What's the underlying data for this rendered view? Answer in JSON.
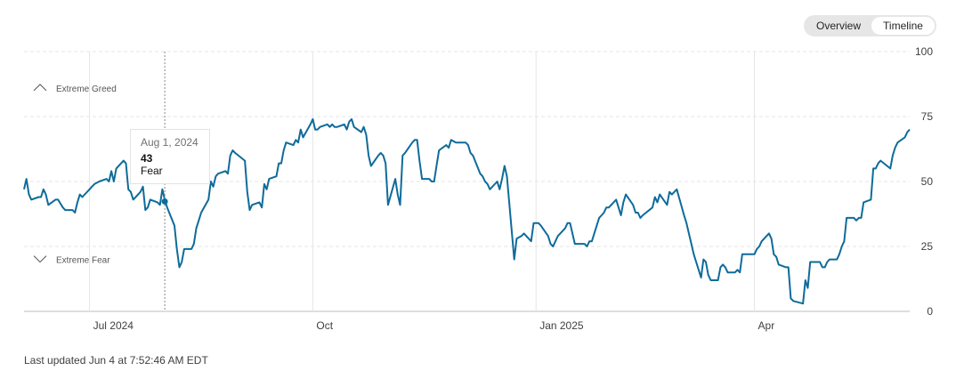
{
  "toggle": {
    "overview_label": "Overview",
    "timeline_label": "Timeline",
    "selected": "Timeline"
  },
  "footer": {
    "last_updated": "Last updated Jun 4 at 7:52:46 AM EDT"
  },
  "tooltip": {
    "date": "Aug 1, 2024",
    "value": "43",
    "label": "Fear"
  },
  "colors": {
    "line": "#0e6b9a",
    "grid": "#e6e6e6",
    "axis": "#bdbdbd",
    "text": "#404040"
  },
  "chart_data": {
    "type": "line",
    "title": "",
    "xlabel": "",
    "ylabel": "",
    "ylim": [
      0,
      100
    ],
    "yticks": [
      0,
      25,
      50,
      75,
      100
    ],
    "xticks": [
      {
        "label": "Jul 2024",
        "date": "2024-07-01"
      },
      {
        "label": "Oct",
        "date": "2024-10-01"
      },
      {
        "label": "Jan 2025",
        "date": "2025-01-01"
      },
      {
        "label": "Apr",
        "date": "2025-04-01"
      }
    ],
    "x_range": [
      "2024-06-04",
      "2025-06-04"
    ],
    "grid": true,
    "zones": [
      {
        "label": "Extreme Greed",
        "icon": "chevron-up-icon"
      },
      {
        "label": "Extreme Fear",
        "icon": "chevron-down-icon"
      }
    ],
    "highlight": {
      "date": "2024-08-01",
      "value": 43
    },
    "series": [
      {
        "points": [
          [
            "2024-06-04",
            47
          ],
          [
            "2024-06-05",
            51
          ],
          [
            "2024-06-06",
            45
          ],
          [
            "2024-06-07",
            43
          ],
          [
            "2024-06-10",
            44
          ],
          [
            "2024-06-11",
            44
          ],
          [
            "2024-06-12",
            47
          ],
          [
            "2024-06-13",
            45
          ],
          [
            "2024-06-14",
            41
          ],
          [
            "2024-06-17",
            43
          ],
          [
            "2024-06-18",
            43
          ],
          [
            "2024-06-20",
            40
          ],
          [
            "2024-06-21",
            39
          ],
          [
            "2024-06-24",
            39
          ],
          [
            "2024-06-25",
            38
          ],
          [
            "2024-06-26",
            42
          ],
          [
            "2024-06-27",
            45
          ],
          [
            "2024-06-28",
            44
          ],
          [
            "2024-07-01",
            47
          ],
          [
            "2024-07-02",
            48
          ],
          [
            "2024-07-03",
            49
          ],
          [
            "2024-07-05",
            50
          ],
          [
            "2024-07-08",
            51
          ],
          [
            "2024-07-09",
            50
          ],
          [
            "2024-07-10",
            54
          ],
          [
            "2024-07-11",
            50
          ],
          [
            "2024-07-12",
            55
          ],
          [
            "2024-07-15",
            58
          ],
          [
            "2024-07-16",
            57
          ],
          [
            "2024-07-17",
            47
          ],
          [
            "2024-07-18",
            46
          ],
          [
            "2024-07-19",
            43
          ],
          [
            "2024-07-22",
            46
          ],
          [
            "2024-07-23",
            48
          ],
          [
            "2024-07-24",
            39
          ],
          [
            "2024-07-25",
            40
          ],
          [
            "2024-07-26",
            43
          ],
          [
            "2024-07-29",
            42
          ],
          [
            "2024-07-30",
            41
          ],
          [
            "2024-07-31",
            47
          ],
          [
            "2024-08-01",
            43
          ],
          [
            "2024-08-02",
            40
          ],
          [
            "2024-08-05",
            33
          ],
          [
            "2024-08-06",
            24
          ],
          [
            "2024-08-07",
            17
          ],
          [
            "2024-08-08",
            19
          ],
          [
            "2024-08-09",
            24
          ],
          [
            "2024-08-12",
            24
          ],
          [
            "2024-08-13",
            26
          ],
          [
            "2024-08-14",
            32
          ],
          [
            "2024-08-15",
            35
          ],
          [
            "2024-08-16",
            38
          ],
          [
            "2024-08-19",
            43
          ],
          [
            "2024-08-20",
            50
          ],
          [
            "2024-08-21",
            48
          ],
          [
            "2024-08-22",
            52
          ],
          [
            "2024-08-23",
            53
          ],
          [
            "2024-08-26",
            54
          ],
          [
            "2024-08-27",
            53
          ],
          [
            "2024-08-28",
            60
          ],
          [
            "2024-08-29",
            62
          ],
          [
            "2024-08-30",
            61
          ],
          [
            "2024-09-03",
            58
          ],
          [
            "2024-09-04",
            46
          ],
          [
            "2024-09-05",
            39
          ],
          [
            "2024-09-06",
            41
          ],
          [
            "2024-09-09",
            42
          ],
          [
            "2024-09-10",
            40
          ],
          [
            "2024-09-11",
            49
          ],
          [
            "2024-09-12",
            47
          ],
          [
            "2024-09-13",
            51
          ],
          [
            "2024-09-16",
            52
          ],
          [
            "2024-09-17",
            57
          ],
          [
            "2024-09-18",
            57
          ],
          [
            "2024-09-19",
            62
          ],
          [
            "2024-09-20",
            65
          ],
          [
            "2024-09-23",
            64
          ],
          [
            "2024-09-24",
            66
          ],
          [
            "2024-09-25",
            65
          ],
          [
            "2024-09-26",
            70
          ],
          [
            "2024-09-27",
            67
          ],
          [
            "2024-09-30",
            72
          ],
          [
            "2024-10-01",
            74
          ],
          [
            "2024-10-02",
            70
          ],
          [
            "2024-10-03",
            70
          ],
          [
            "2024-10-04",
            71
          ],
          [
            "2024-10-07",
            72
          ],
          [
            "2024-10-08",
            71
          ],
          [
            "2024-10-09",
            72
          ],
          [
            "2024-10-10",
            71
          ],
          [
            "2024-10-11",
            71
          ],
          [
            "2024-10-14",
            72
          ],
          [
            "2024-10-15",
            70
          ],
          [
            "2024-10-16",
            73
          ],
          [
            "2024-10-17",
            74
          ],
          [
            "2024-10-18",
            71
          ],
          [
            "2024-10-21",
            69
          ],
          [
            "2024-10-22",
            71
          ],
          [
            "2024-10-23",
            68
          ],
          [
            "2024-10-24",
            60
          ],
          [
            "2024-10-25",
            56
          ],
          [
            "2024-10-28",
            60
          ],
          [
            "2024-10-29",
            61
          ],
          [
            "2024-10-30",
            60
          ],
          [
            "2024-10-31",
            57
          ],
          [
            "2024-11-01",
            41
          ],
          [
            "2024-11-04",
            51
          ],
          [
            "2024-11-05",
            45
          ],
          [
            "2024-11-06",
            41
          ],
          [
            "2024-11-07",
            60
          ],
          [
            "2024-11-08",
            61
          ],
          [
            "2024-11-11",
            65
          ],
          [
            "2024-11-12",
            66
          ],
          [
            "2024-11-13",
            66
          ],
          [
            "2024-11-14",
            58
          ],
          [
            "2024-11-15",
            51
          ],
          [
            "2024-11-18",
            51
          ],
          [
            "2024-11-19",
            50
          ],
          [
            "2024-11-20",
            50
          ],
          [
            "2024-11-21",
            56
          ],
          [
            "2024-11-22",
            62
          ],
          [
            "2024-11-25",
            64
          ],
          [
            "2024-11-26",
            63
          ],
          [
            "2024-11-27",
            66
          ],
          [
            "2024-11-29",
            65
          ],
          [
            "2024-12-02",
            65
          ],
          [
            "2024-12-03",
            65
          ],
          [
            "2024-12-04",
            64
          ],
          [
            "2024-12-05",
            61
          ],
          [
            "2024-12-06",
            60
          ],
          [
            "2024-12-09",
            53
          ],
          [
            "2024-12-10",
            52
          ],
          [
            "2024-12-11",
            50
          ],
          [
            "2024-12-12",
            49
          ],
          [
            "2024-12-13",
            47
          ],
          [
            "2024-12-16",
            50
          ],
          [
            "2024-12-17",
            47
          ],
          [
            "2024-12-18",
            51
          ],
          [
            "2024-12-19",
            56
          ],
          [
            "2024-12-20",
            52
          ],
          [
            "2024-12-23",
            20
          ],
          [
            "2024-12-24",
            28
          ],
          [
            "2024-12-26",
            29
          ],
          [
            "2024-12-27",
            30
          ],
          [
            "2024-12-30",
            27
          ],
          [
            "2024-12-31",
            34
          ],
          [
            "2025-01-02",
            34
          ],
          [
            "2025-01-03",
            33
          ],
          [
            "2025-01-06",
            29
          ],
          [
            "2025-01-07",
            26
          ],
          [
            "2025-01-08",
            25
          ],
          [
            "2025-01-10",
            29
          ],
          [
            "2025-01-13",
            32
          ],
          [
            "2025-01-14",
            34
          ],
          [
            "2025-01-15",
            34
          ],
          [
            "2025-01-16",
            30
          ],
          [
            "2025-01-17",
            26
          ],
          [
            "2025-01-21",
            26
          ],
          [
            "2025-01-22",
            25
          ],
          [
            "2025-01-23",
            27
          ],
          [
            "2025-01-24",
            27
          ],
          [
            "2025-01-27",
            36
          ],
          [
            "2025-01-28",
            37
          ],
          [
            "2025-01-29",
            38
          ],
          [
            "2025-01-30",
            40
          ],
          [
            "2025-01-31",
            40
          ],
          [
            "2025-02-03",
            43
          ],
          [
            "2025-02-04",
            40
          ],
          [
            "2025-02-05",
            37
          ],
          [
            "2025-02-06",
            42
          ],
          [
            "2025-02-07",
            45
          ],
          [
            "2025-02-10",
            41
          ],
          [
            "2025-02-11",
            38
          ],
          [
            "2025-02-12",
            38
          ],
          [
            "2025-02-13",
            36
          ],
          [
            "2025-02-14",
            37
          ],
          [
            "2025-02-18",
            40
          ],
          [
            "2025-02-19",
            44
          ],
          [
            "2025-02-20",
            42
          ],
          [
            "2025-02-21",
            45
          ],
          [
            "2025-02-24",
            41
          ],
          [
            "2025-02-25",
            46
          ],
          [
            "2025-02-26",
            45
          ],
          [
            "2025-02-27",
            46
          ],
          [
            "2025-02-28",
            47
          ],
          [
            "2025-03-03",
            37
          ],
          [
            "2025-03-04",
            34
          ],
          [
            "2025-03-05",
            30
          ],
          [
            "2025-03-06",
            26
          ],
          [
            "2025-03-07",
            22
          ],
          [
            "2025-03-10",
            13
          ],
          [
            "2025-03-11",
            20
          ],
          [
            "2025-03-12",
            19
          ],
          [
            "2025-03-13",
            14
          ],
          [
            "2025-03-14",
            12
          ],
          [
            "2025-03-17",
            12
          ],
          [
            "2025-03-18",
            17
          ],
          [
            "2025-03-19",
            18
          ],
          [
            "2025-03-20",
            17
          ],
          [
            "2025-03-21",
            15
          ],
          [
            "2025-03-24",
            15
          ],
          [
            "2025-03-25",
            16
          ],
          [
            "2025-03-26",
            15
          ],
          [
            "2025-03-27",
            22
          ],
          [
            "2025-03-28",
            22
          ],
          [
            "2025-03-31",
            22
          ],
          [
            "2025-04-01",
            22
          ],
          [
            "2025-04-02",
            24
          ],
          [
            "2025-04-03",
            25
          ],
          [
            "2025-04-04",
            27
          ],
          [
            "2025-04-07",
            30
          ],
          [
            "2025-04-08",
            28
          ],
          [
            "2025-04-09",
            22
          ],
          [
            "2025-04-10",
            21
          ],
          [
            "2025-04-11",
            18
          ],
          [
            "2025-04-14",
            17
          ],
          [
            "2025-04-15",
            17
          ],
          [
            "2025-04-16",
            5
          ],
          [
            "2025-04-17",
            4
          ],
          [
            "2025-04-21",
            3
          ],
          [
            "2025-04-22",
            12
          ],
          [
            "2025-04-23",
            9
          ],
          [
            "2025-04-24",
            19
          ],
          [
            "2025-04-25",
            19
          ],
          [
            "2025-04-28",
            19
          ],
          [
            "2025-04-29",
            17
          ],
          [
            "2025-04-30",
            17
          ],
          [
            "2025-05-01",
            19
          ],
          [
            "2025-05-02",
            20
          ],
          [
            "2025-05-05",
            20
          ],
          [
            "2025-05-06",
            22
          ],
          [
            "2025-05-07",
            25
          ],
          [
            "2025-05-08",
            27
          ],
          [
            "2025-05-09",
            36
          ],
          [
            "2025-05-12",
            36
          ],
          [
            "2025-05-13",
            35
          ],
          [
            "2025-05-14",
            36
          ],
          [
            "2025-05-15",
            36
          ],
          [
            "2025-05-16",
            42
          ],
          [
            "2025-05-19",
            43
          ],
          [
            "2025-05-20",
            55
          ],
          [
            "2025-05-21",
            55
          ],
          [
            "2025-05-22",
            57
          ],
          [
            "2025-05-23",
            58
          ],
          [
            "2025-05-27",
            55
          ],
          [
            "2025-05-28",
            60
          ],
          [
            "2025-05-29",
            63
          ],
          [
            "2025-05-30",
            65
          ],
          [
            "2025-06-02",
            67
          ],
          [
            "2025-06-03",
            69
          ],
          [
            "2025-06-04",
            70
          ]
        ]
      }
    ]
  }
}
